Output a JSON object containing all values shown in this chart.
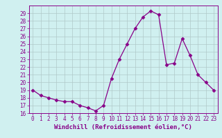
{
  "x": [
    0,
    1,
    2,
    3,
    4,
    5,
    6,
    7,
    8,
    9,
    10,
    11,
    12,
    13,
    14,
    15,
    16,
    17,
    18,
    19,
    20,
    21,
    22,
    23
  ],
  "y": [
    19,
    18.3,
    18,
    17.7,
    17.5,
    17.5,
    17,
    16.7,
    16.3,
    17,
    20.5,
    23,
    25,
    27,
    28.5,
    29.3,
    28.8,
    22.3,
    22.5,
    25.7,
    23.5,
    21,
    20,
    19
  ],
  "line_color": "#880088",
  "marker": "D",
  "marker_size": 2.5,
  "xlabel": "Windchill (Refroidissement éolien,°C)",
  "xlim": [
    -0.5,
    23.5
  ],
  "ylim": [
    16,
    30
  ],
  "yticks": [
    16,
    17,
    18,
    19,
    20,
    21,
    22,
    23,
    24,
    25,
    26,
    27,
    28,
    29
  ],
  "xticks": [
    0,
    1,
    2,
    3,
    4,
    5,
    6,
    7,
    8,
    9,
    10,
    11,
    12,
    13,
    14,
    15,
    16,
    17,
    18,
    19,
    20,
    21,
    22,
    23
  ],
  "bg_color": "#d0f0f0",
  "grid_color": "#b0c8c8",
  "tick_label_fontsize": 5.5,
  "xlabel_fontsize": 6.5
}
